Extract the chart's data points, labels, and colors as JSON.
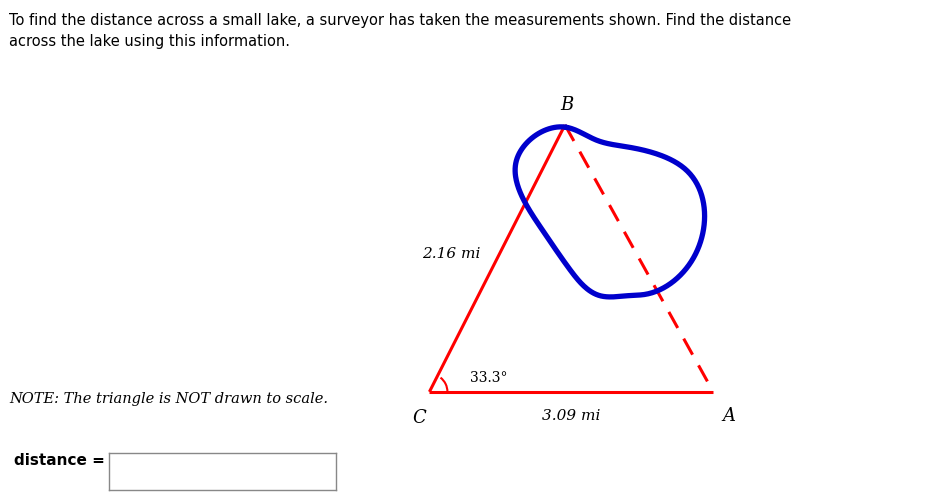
{
  "title_text": "To find the distance across a small lake, a surveyor has taken the measurements shown. Find the distance\nacross the lake using this information.",
  "note_text": "NOTE: The triangle is NOT drawn to scale.",
  "label_distance": "distance =",
  "label_CA": "3.09 mi",
  "label_CB": "2.16 mi",
  "label_angle": "33.3°",
  "vertex_C": [
    0.15,
    0.12
  ],
  "vertex_A": [
    0.82,
    0.12
  ],
  "vertex_B": [
    0.47,
    0.75
  ],
  "triangle_color": "#ff0000",
  "lake_color": "#0000cc",
  "dashed_color": "#ff0000",
  "bg_color": "#ffffff",
  "label_A": "A",
  "label_B": "B",
  "label_C": "C",
  "lake_points_x": [
    0.475,
    0.49,
    0.545,
    0.62,
    0.695,
    0.755,
    0.79,
    0.8,
    0.795,
    0.77,
    0.735,
    0.695,
    0.665,
    0.655,
    0.645,
    0.625,
    0.595,
    0.555,
    0.525,
    0.505,
    0.485,
    0.455,
    0.415,
    0.385,
    0.365,
    0.355,
    0.355,
    0.36,
    0.375,
    0.395,
    0.415,
    0.435,
    0.455,
    0.47,
    0.475
  ],
  "lake_points_y": [
    0.75,
    0.73,
    0.715,
    0.7,
    0.675,
    0.645,
    0.6,
    0.545,
    0.49,
    0.435,
    0.39,
    0.36,
    0.35,
    0.345,
    0.345,
    0.355,
    0.35,
    0.345,
    0.355,
    0.375,
    0.41,
    0.45,
    0.5,
    0.55,
    0.595,
    0.635,
    0.665,
    0.69,
    0.71,
    0.72,
    0.73,
    0.74,
    0.745,
    0.748,
    0.75
  ]
}
